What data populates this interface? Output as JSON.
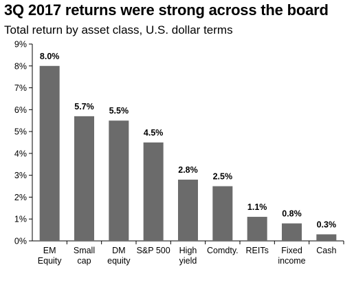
{
  "title": "3Q 2017 returns were strong across the board",
  "subtitle": "Total return by asset class, U.S. dollar terms",
  "colors": {
    "bar": "#6b6b6b",
    "axis": "#000000",
    "text": "#000000"
  },
  "chart_data": {
    "type": "bar",
    "title": "3Q 2017 returns were strong across the board",
    "subtitle": "Total return by asset class, U.S. dollar terms",
    "categories": [
      [
        "EM",
        "Equity"
      ],
      [
        "Small",
        "cap"
      ],
      [
        "DM",
        "equity"
      ],
      [
        "S&P 500"
      ],
      [
        "High",
        "yield"
      ],
      [
        "Comdty."
      ],
      [
        "REITs"
      ],
      [
        "Fixed",
        "income"
      ],
      [
        "Cash"
      ]
    ],
    "values": [
      8.0,
      5.7,
      5.5,
      4.5,
      2.8,
      2.5,
      1.1,
      0.8,
      0.3
    ],
    "data_labels": [
      "8.0%",
      "5.7%",
      "5.5%",
      "4.5%",
      "2.8%",
      "2.5%",
      "1.1%",
      "0.8%",
      "0.3%"
    ],
    "yticks": [
      "0%",
      "1%",
      "2%",
      "3%",
      "4%",
      "5%",
      "6%",
      "7%",
      "8%",
      "9%"
    ],
    "ylim": [
      0,
      9
    ],
    "xlabel": "",
    "ylabel": "",
    "grid": false,
    "legend": "none"
  }
}
